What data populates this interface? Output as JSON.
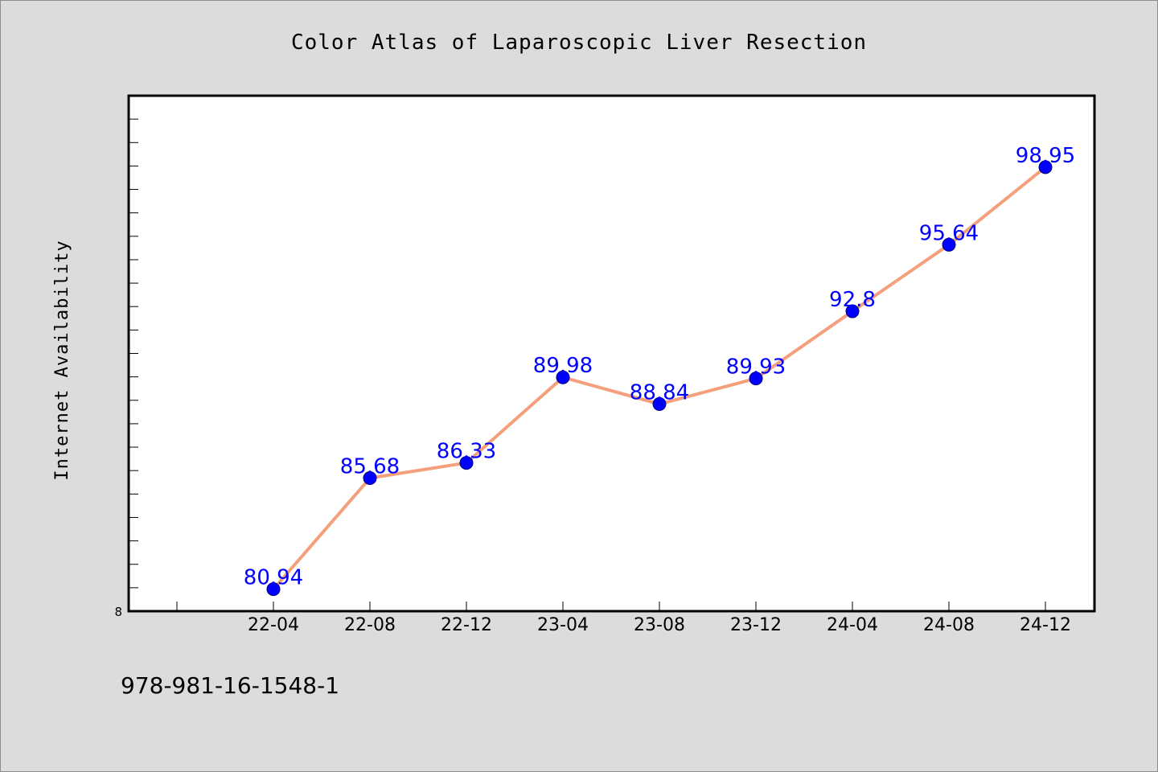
{
  "colors": {
    "background": "#dcdcdc",
    "plot_background": "#ffffff",
    "line": "#f4a07c",
    "marker": "#0000ff",
    "data_label": "#0000ff"
  },
  "footer": {
    "isbn": "978-981-16-1548-1"
  },
  "chart_data": {
    "type": "line",
    "title": "Color Atlas of Laparoscopic Liver Resection",
    "xlabel": "",
    "ylabel": "Internet Availability",
    "categories": [
      "22-04",
      "22-08",
      "22-12",
      "23-04",
      "23-08",
      "23-12",
      "24-04",
      "24-08",
      "24-12"
    ],
    "series": [
      {
        "values": [
          80.94,
          85.68,
          86.33,
          89.98,
          88.84,
          89.93,
          92.8,
          95.64,
          98.95
        ]
      }
    ],
    "data_labels": [
      "80.94",
      "85.68",
      "86.33",
      "89.98",
      "88.84",
      "89.93",
      "92.8",
      "95.64",
      "98.95"
    ],
    "y_tick_label": "8",
    "ylim": [
      80.0,
      102.0
    ],
    "grid": false,
    "legend": "none"
  }
}
